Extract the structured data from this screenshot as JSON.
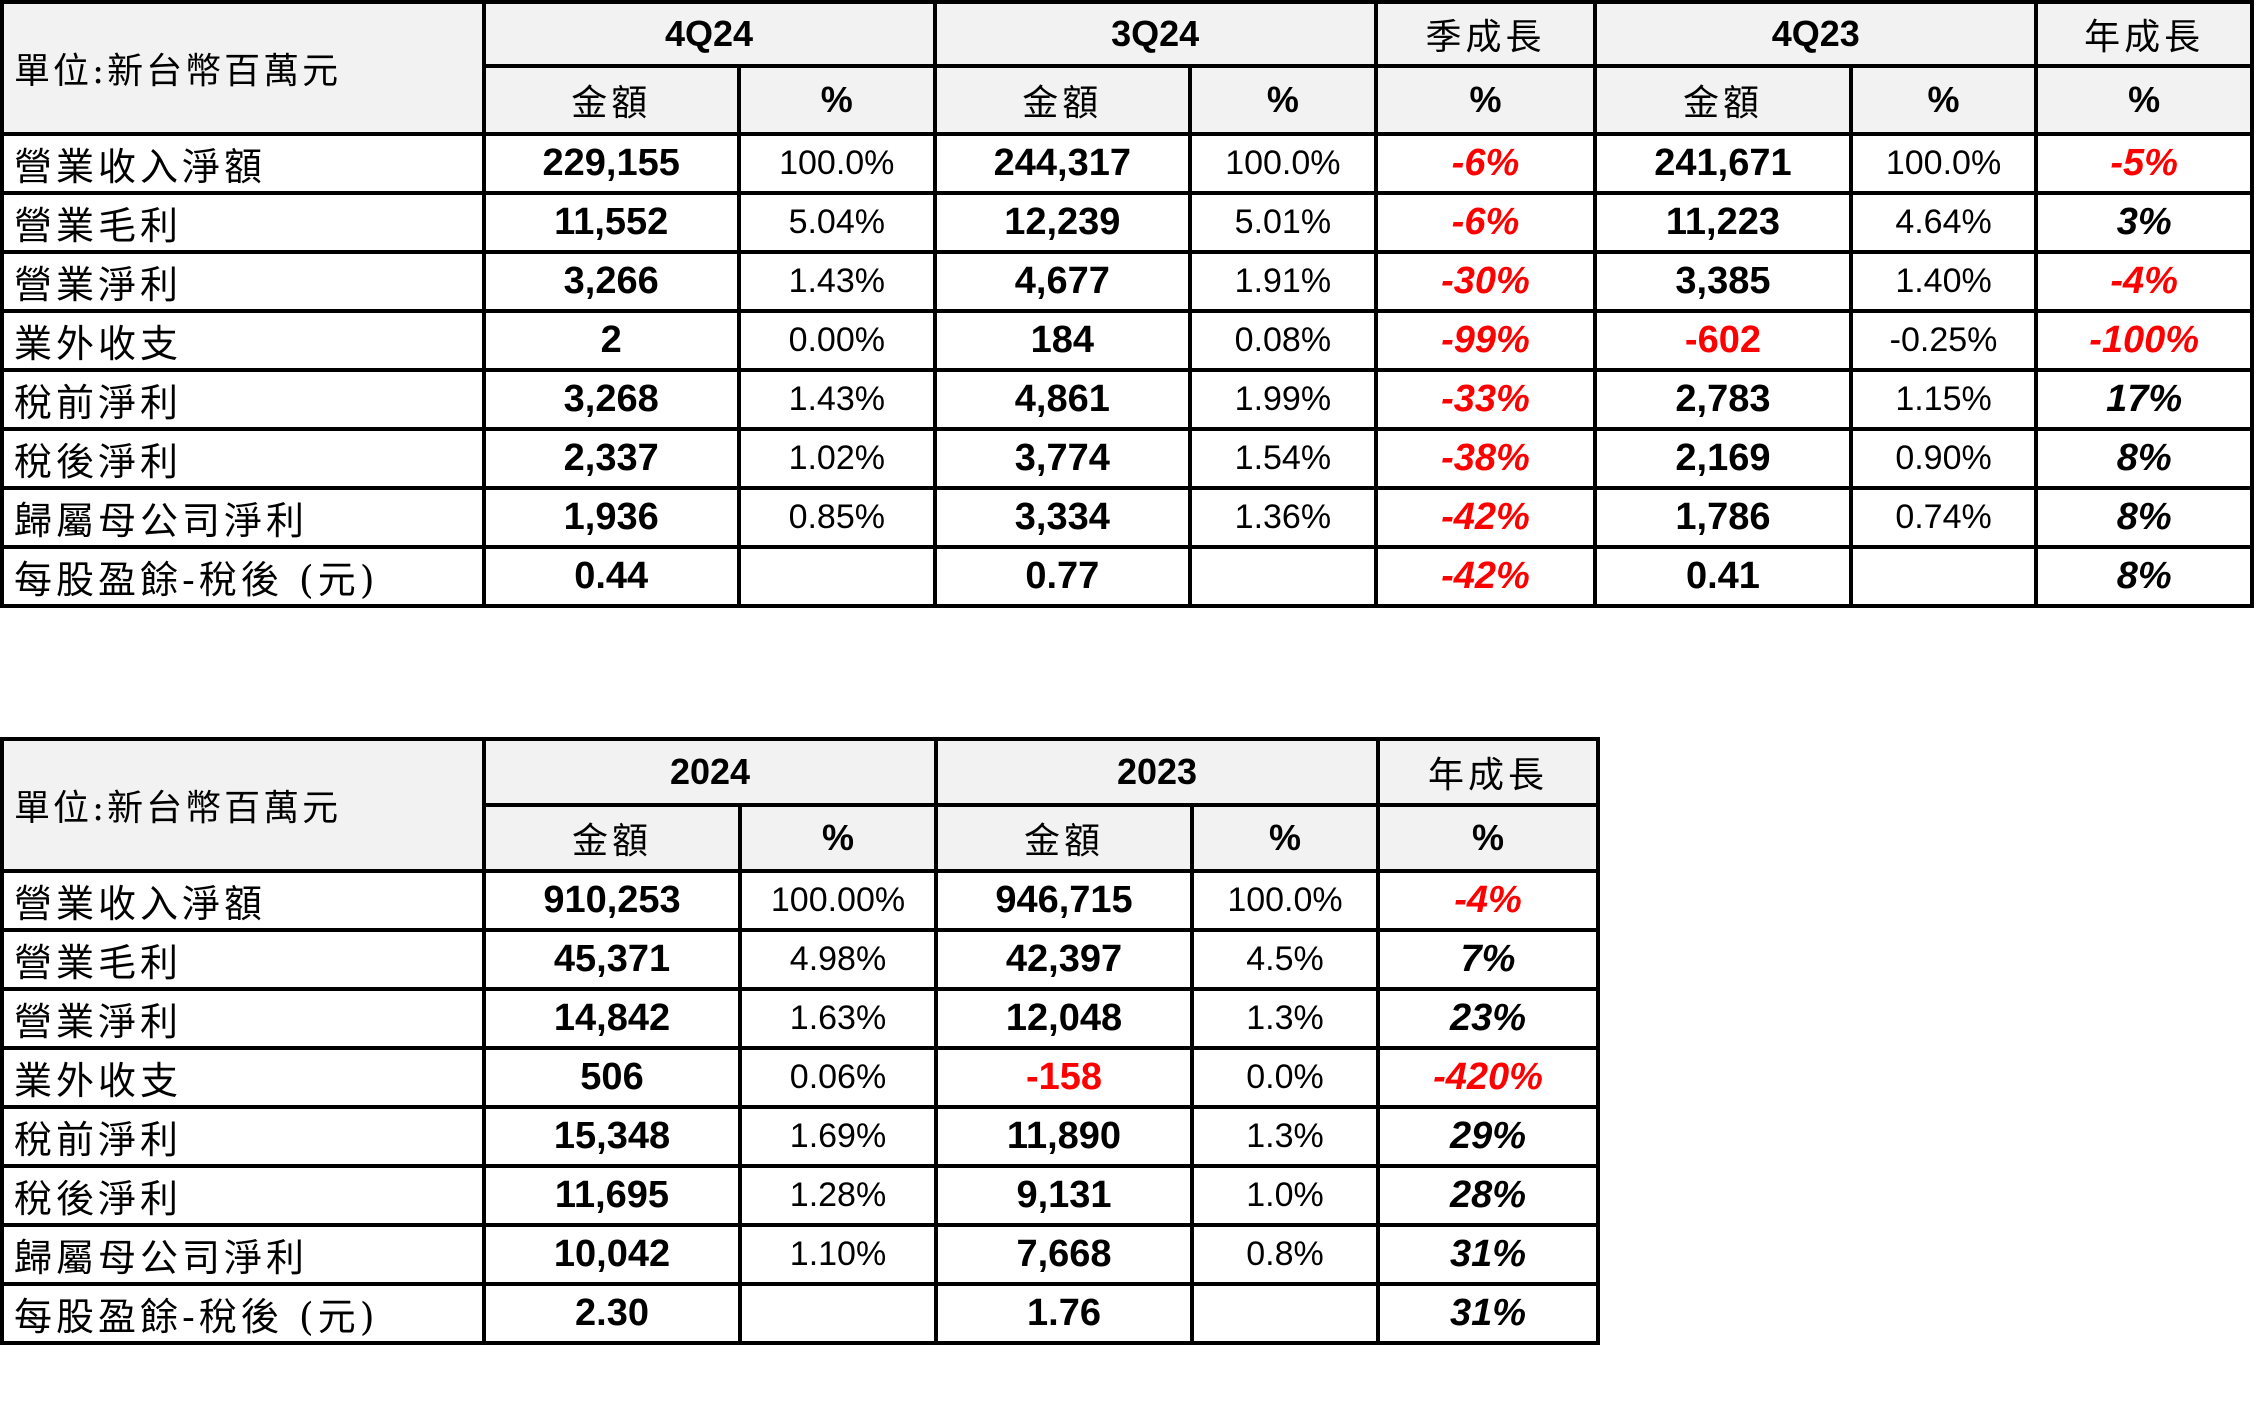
{
  "quarterly": {
    "unit_label": "單位:新台幣百萬元",
    "periods": [
      "4Q24",
      "3Q24",
      "季成長",
      "4Q23",
      "年成長"
    ],
    "subheaders": {
      "amount": "金額",
      "pct": "%"
    },
    "rows": [
      {
        "label": "營業收入淨額",
        "cells": [
          {
            "text": "229,155",
            "neg": false
          },
          {
            "text": "100.0%",
            "neg": false
          },
          {
            "text": "244,317",
            "neg": false
          },
          {
            "text": "100.0%",
            "neg": false
          },
          {
            "text": "-6%",
            "neg": true
          },
          {
            "text": "241,671",
            "neg": false
          },
          {
            "text": "100.0%",
            "neg": false
          },
          {
            "text": "-5%",
            "neg": true
          }
        ]
      },
      {
        "label": "營業毛利",
        "cells": [
          {
            "text": "11,552",
            "neg": false
          },
          {
            "text": "5.04%",
            "neg": false
          },
          {
            "text": "12,239",
            "neg": false
          },
          {
            "text": "5.01%",
            "neg": false
          },
          {
            "text": "-6%",
            "neg": true
          },
          {
            "text": "11,223",
            "neg": false
          },
          {
            "text": "4.64%",
            "neg": false
          },
          {
            "text": "3%",
            "neg": false
          }
        ]
      },
      {
        "label": "營業淨利",
        "cells": [
          {
            "text": "3,266",
            "neg": false
          },
          {
            "text": "1.43%",
            "neg": false
          },
          {
            "text": "4,677",
            "neg": false
          },
          {
            "text": "1.91%",
            "neg": false
          },
          {
            "text": "-30%",
            "neg": true
          },
          {
            "text": "3,385",
            "neg": false
          },
          {
            "text": "1.40%",
            "neg": false
          },
          {
            "text": "-4%",
            "neg": true
          }
        ]
      },
      {
        "label": "業外收支",
        "cells": [
          {
            "text": "2",
            "neg": false
          },
          {
            "text": "0.00%",
            "neg": false
          },
          {
            "text": "184",
            "neg": false
          },
          {
            "text": "0.08%",
            "neg": false
          },
          {
            "text": "-99%",
            "neg": true
          },
          {
            "text": "-602",
            "neg": true
          },
          {
            "text": "-0.25%",
            "neg": false
          },
          {
            "text": "-100%",
            "neg": true
          }
        ]
      },
      {
        "label": "稅前淨利",
        "cells": [
          {
            "text": "3,268",
            "neg": false
          },
          {
            "text": "1.43%",
            "neg": false
          },
          {
            "text": "4,861",
            "neg": false
          },
          {
            "text": "1.99%",
            "neg": false
          },
          {
            "text": "-33%",
            "neg": true
          },
          {
            "text": "2,783",
            "neg": false
          },
          {
            "text": "1.15%",
            "neg": false
          },
          {
            "text": "17%",
            "neg": false
          }
        ]
      },
      {
        "label": "稅後淨利",
        "cells": [
          {
            "text": "2,337",
            "neg": false
          },
          {
            "text": "1.02%",
            "neg": false
          },
          {
            "text": "3,774",
            "neg": false
          },
          {
            "text": "1.54%",
            "neg": false
          },
          {
            "text": "-38%",
            "neg": true
          },
          {
            "text": "2,169",
            "neg": false
          },
          {
            "text": "0.90%",
            "neg": false
          },
          {
            "text": "8%",
            "neg": false
          }
        ]
      },
      {
        "label": "歸屬母公司淨利",
        "cells": [
          {
            "text": "1,936",
            "neg": false
          },
          {
            "text": "0.85%",
            "neg": false
          },
          {
            "text": "3,334",
            "neg": false
          },
          {
            "text": "1.36%",
            "neg": false
          },
          {
            "text": "-42%",
            "neg": true
          },
          {
            "text": "1,786",
            "neg": false
          },
          {
            "text": "0.74%",
            "neg": false
          },
          {
            "text": "8%",
            "neg": false
          }
        ]
      },
      {
        "label": "每股盈餘-稅後 (元)",
        "cells": [
          {
            "text": "0.44",
            "neg": false
          },
          {
            "text": "",
            "neg": false
          },
          {
            "text": "0.77",
            "neg": false
          },
          {
            "text": "",
            "neg": false
          },
          {
            "text": "-42%",
            "neg": true
          },
          {
            "text": "0.41",
            "neg": false
          },
          {
            "text": "",
            "neg": false
          },
          {
            "text": "8%",
            "neg": false
          }
        ]
      }
    ]
  },
  "annual": {
    "unit_label": "單位:新台幣百萬元",
    "periods": [
      "2024",
      "2023",
      "年成長"
    ],
    "subheaders": {
      "amount": "金額",
      "pct": "%"
    },
    "rows": [
      {
        "label": "營業收入淨額",
        "cells": [
          {
            "text": "910,253",
            "neg": false
          },
          {
            "text": "100.00%",
            "neg": false
          },
          {
            "text": "946,715",
            "neg": false
          },
          {
            "text": "100.0%",
            "neg": false
          },
          {
            "text": "-4%",
            "neg": true
          }
        ]
      },
      {
        "label": "營業毛利",
        "cells": [
          {
            "text": "45,371",
            "neg": false
          },
          {
            "text": "4.98%",
            "neg": false
          },
          {
            "text": "42,397",
            "neg": false
          },
          {
            "text": "4.5%",
            "neg": false
          },
          {
            "text": "7%",
            "neg": false
          }
        ]
      },
      {
        "label": "營業淨利",
        "cells": [
          {
            "text": "14,842",
            "neg": false
          },
          {
            "text": "1.63%",
            "neg": false
          },
          {
            "text": "12,048",
            "neg": false
          },
          {
            "text": "1.3%",
            "neg": false
          },
          {
            "text": "23%",
            "neg": false
          }
        ]
      },
      {
        "label": "業外收支",
        "cells": [
          {
            "text": "506",
            "neg": false
          },
          {
            "text": "0.06%",
            "neg": false
          },
          {
            "text": "-158",
            "neg": true
          },
          {
            "text": "0.0%",
            "neg": false
          },
          {
            "text": "-420%",
            "neg": true
          }
        ]
      },
      {
        "label": "稅前淨利",
        "cells": [
          {
            "text": "15,348",
            "neg": false
          },
          {
            "text": "1.69%",
            "neg": false
          },
          {
            "text": "11,890",
            "neg": false
          },
          {
            "text": "1.3%",
            "neg": false
          },
          {
            "text": "29%",
            "neg": false
          }
        ]
      },
      {
        "label": "稅後淨利",
        "cells": [
          {
            "text": "11,695",
            "neg": false
          },
          {
            "text": "1.28%",
            "neg": false
          },
          {
            "text": "9,131",
            "neg": false
          },
          {
            "text": "1.0%",
            "neg": false
          },
          {
            "text": "28%",
            "neg": false
          }
        ]
      },
      {
        "label": "歸屬母公司淨利",
        "cells": [
          {
            "text": "10,042",
            "neg": false
          },
          {
            "text": "1.10%",
            "neg": false
          },
          {
            "text": "7,668",
            "neg": false
          },
          {
            "text": "0.8%",
            "neg": false
          },
          {
            "text": "31%",
            "neg": false
          }
        ]
      },
      {
        "label": "每股盈餘-稅後 (元)",
        "cells": [
          {
            "text": "2.30",
            "neg": false
          },
          {
            "text": "",
            "neg": false
          },
          {
            "text": "1.76",
            "neg": false
          },
          {
            "text": "",
            "neg": false
          },
          {
            "text": "31%",
            "neg": false
          }
        ]
      }
    ]
  },
  "colors": {
    "negative": "#ff0000",
    "header_bg": "#f2f2f2",
    "border": "#000000"
  }
}
